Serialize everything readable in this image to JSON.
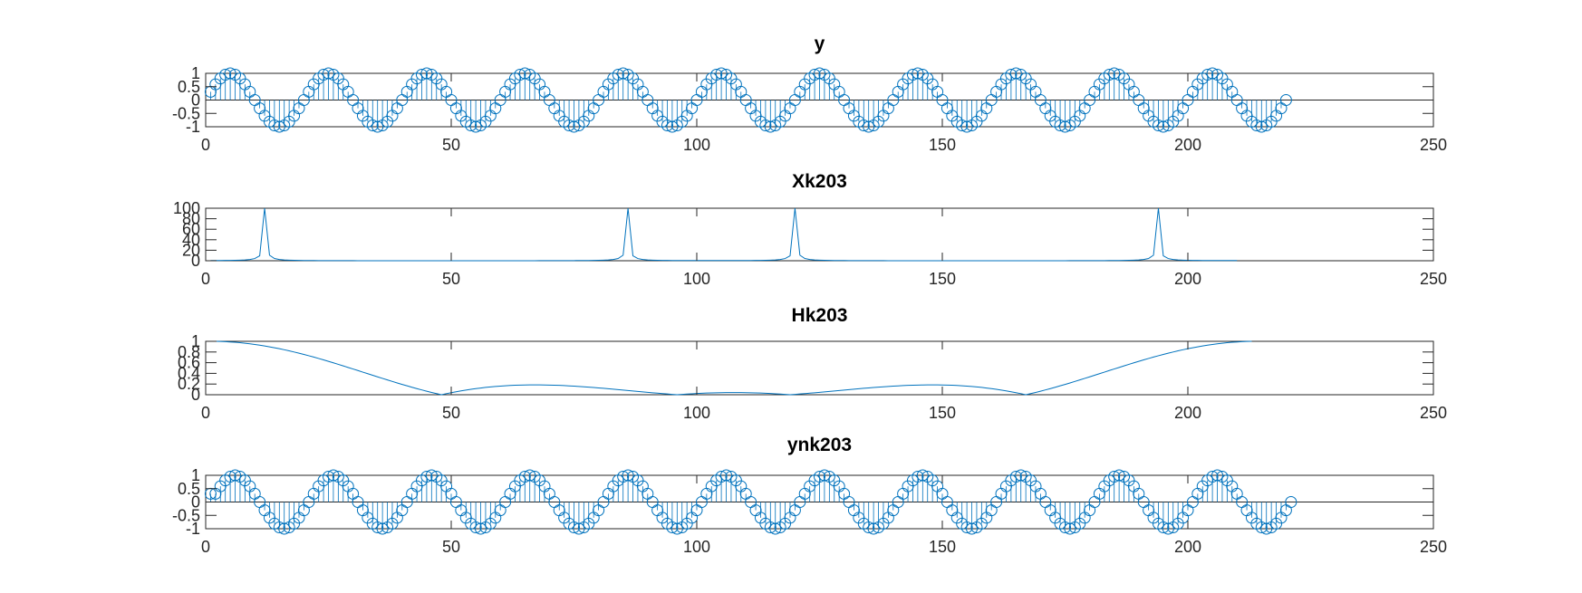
{
  "figure": {
    "background": "#ffffff"
  },
  "colors": {
    "series": "#0072BD",
    "axes": "#262626"
  },
  "chart_data": [
    {
      "type": "stem",
      "title": "y",
      "xlim": [
        0,
        250
      ],
      "ylim": [
        -1,
        1
      ],
      "xticks": [
        0,
        50,
        100,
        150,
        200,
        250
      ],
      "xtick_labels": [
        "0",
        "50",
        "100",
        "150",
        "200",
        "250"
      ],
      "yticks": [
        -1,
        -0.5,
        0,
        0.5,
        1
      ],
      "ytick_labels": [
        "-1",
        "-0.5",
        "0",
        "0.5",
        "1"
      ],
      "grid": false,
      "series": [
        {
          "values": [
            0.31,
            0.59,
            0.81,
            0.95,
            1,
            0.95,
            0.81,
            0.59,
            0.31,
            0,
            -0.31,
            -0.59,
            -0.81,
            -0.95,
            -1,
            -0.95,
            -0.81,
            -0.59,
            -0.31,
            0,
            0.31,
            0.59,
            0.81,
            0.95,
            1,
            0.95,
            0.81,
            0.59,
            0.31,
            0,
            -0.31,
            -0.59,
            -0.81,
            -0.95,
            -1,
            -0.95,
            -0.81,
            -0.59,
            -0.31,
            0,
            0.31,
            0.59,
            0.81,
            0.95,
            1,
            0.95,
            0.81,
            0.59,
            0.31,
            0,
            -0.31,
            -0.59,
            -0.81,
            -0.95,
            -1,
            -0.95,
            -0.81,
            -0.59,
            -0.31,
            0,
            0.31,
            0.59,
            0.81,
            0.95,
            1,
            0.95,
            0.81,
            0.59,
            0.31,
            0,
            -0.31,
            -0.59,
            -0.81,
            -0.95,
            -1,
            -0.95,
            -0.81,
            -0.59,
            -0.31,
            0,
            0.31,
            0.59,
            0.81,
            0.95,
            1,
            0.95,
            0.81,
            0.59,
            0.31,
            0,
            -0.31,
            -0.59,
            -0.81,
            -0.95,
            -1,
            -0.95,
            -0.81,
            -0.59,
            -0.31,
            0,
            0.31,
            0.59,
            0.81,
            0.95,
            1,
            0.95,
            0.81,
            0.59,
            0.31,
            0,
            -0.31,
            -0.59,
            -0.81,
            -0.95,
            -1,
            -0.95,
            -0.81,
            -0.59,
            -0.31,
            0,
            0.31,
            0.59,
            0.81,
            0.95,
            1,
            0.95,
            0.81,
            0.59,
            0.31,
            0,
            -0.31,
            -0.59,
            -0.81,
            -0.95,
            -1,
            -0.95,
            -0.81,
            -0.59,
            -0.31,
            0,
            0.31,
            0.59,
            0.81,
            0.95,
            1,
            0.95,
            0.81,
            0.59,
            0.31,
            0,
            -0.31,
            -0.59,
            -0.81,
            -0.95,
            -1,
            -0.95,
            -0.81,
            -0.59,
            -0.31,
            0,
            0.31,
            0.59,
            0.81,
            0.95,
            1,
            0.95,
            0.81,
            0.59,
            0.31,
            0,
            -0.31,
            -0.59,
            -0.81,
            -0.95,
            -1,
            -0.95,
            -0.81,
            -0.59,
            -0.31,
            0,
            0.31,
            0.59,
            0.81,
            0.95,
            1,
            0.95,
            0.81,
            0.59,
            0.31,
            0,
            -0.31,
            -0.59,
            -0.81,
            -0.95,
            -1,
            -0.95,
            -0.81,
            -0.59,
            -0.31,
            0,
            0.31,
            0.59,
            0.81,
            0.95,
            1,
            0.95,
            0.81,
            0.59,
            0.31,
            0,
            -0.31,
            -0.59,
            -0.81,
            -0.95,
            -1,
            -0.95,
            -0.81,
            -0.59,
            -0.31,
            0
          ]
        }
      ]
    },
    {
      "type": "line",
      "title": "Xk203",
      "xlim": [
        0,
        250
      ],
      "ylim": [
        0,
        100
      ],
      "xticks": [
        0,
        50,
        100,
        150,
        200,
        250
      ],
      "xtick_labels": [
        "0",
        "50",
        "100",
        "150",
        "200",
        "250"
      ],
      "yticks": [
        0,
        20,
        40,
        60,
        80,
        100
      ],
      "ytick_labels": [
        "0",
        "20",
        "40",
        "60",
        "80",
        "100"
      ],
      "grid": false,
      "series": [
        {
          "values": [
            0.42,
            0.46,
            0.52,
            0.6,
            0.72,
            0.89,
            1.16,
            1.6,
            2.42,
            4.2,
            9.47,
            100.01,
            10.53,
            4.3,
            2.45,
            1.6,
            1.13,
            0.85,
            0.66,
            0.53,
            0.44,
            0.37,
            0.31,
            0.27,
            0.23,
            0.2,
            0.18,
            0.16,
            0.14,
            0.12,
            0.11,
            0.1,
            0.09,
            0.08,
            0.07,
            0.06,
            0.05,
            0.05,
            0.04,
            0.03,
            0.03,
            0.02,
            0.02,
            0.01,
            0.01,
            0.01,
            0.01,
            0.01,
            0.01,
            0.01,
            0.01,
            0.01,
            0.01,
            0.01,
            0.02,
            0.02,
            0.03,
            0.03,
            0.04,
            0.05,
            0.05,
            0.06,
            0.07,
            0.08,
            0.09,
            0.1,
            0.11,
            0.12,
            0.14,
            0.16,
            0.18,
            0.2,
            0.23,
            0.27,
            0.31,
            0.37,
            0.44,
            0.53,
            0.66,
            0.85,
            1.13,
            1.6,
            2.45,
            4.3,
            10.53,
            100.01,
            9.47,
            4.2,
            2.42,
            1.6,
            1.16,
            0.89,
            0.72,
            0.6,
            0.52,
            0.46,
            0.42,
            0.38,
            0.36,
            0.34,
            0.33,
            0.32,
            0.32,
            0.32,
            0.33,
            0.34,
            0.36,
            0.38,
            0.42,
            0.46,
            0.52,
            0.6,
            0.72,
            0.89,
            1.16,
            1.6,
            2.42,
            4.2,
            9.47,
            100.01,
            10.53,
            4.3,
            2.45,
            1.6,
            1.13,
            0.85,
            0.66,
            0.53,
            0.44,
            0.37,
            0.31,
            0.27,
            0.23,
            0.2,
            0.18,
            0.16,
            0.14,
            0.12,
            0.11,
            0.1,
            0.09,
            0.08,
            0.07,
            0.06,
            0.05,
            0.05,
            0.04,
            0.03,
            0.03,
            0.02,
            0.02,
            0.01,
            0.01,
            0.01,
            0.01,
            0.01,
            0.01,
            0.01,
            0.01,
            0.01,
            0.01,
            0.01,
            0.02,
            0.02,
            0.03,
            0.03,
            0.04,
            0.05,
            0.05,
            0.06,
            0.07,
            0.08,
            0.09,
            0.1,
            0.11,
            0.12,
            0.14,
            0.16,
            0.18,
            0.2,
            0.23,
            0.27,
            0.31,
            0.37,
            0.44,
            0.53,
            0.66,
            0.85,
            1.13,
            1.6,
            2.45,
            4.3,
            10.53,
            100.01,
            9.47,
            4.2,
            2.42,
            1.6,
            1.16,
            0.89,
            0.72,
            0.6,
            0.52,
            0.46,
            0.42,
            0.38,
            0.36,
            0.34,
            0.33,
            0.32
          ]
        }
      ]
    },
    {
      "type": "line",
      "title": "Hk203",
      "xlim": [
        0,
        250
      ],
      "ylim": [
        0,
        1
      ],
      "xticks": [
        0,
        50,
        100,
        150,
        200,
        250
      ],
      "xtick_labels": [
        "0",
        "50",
        "100",
        "150",
        "200",
        "250"
      ],
      "yticks": [
        0,
        0.2,
        0.4,
        0.6,
        0.8,
        1
      ],
      "ytick_labels": [
        "0",
        "0.2",
        "0.4",
        "0.6",
        "0.8",
        "1"
      ],
      "grid": false,
      "series": [
        {
          "values": [
            1,
            0.999,
            0.997,
            0.993,
            0.988,
            0.982,
            0.974,
            0.964,
            0.953,
            0.941,
            0.928,
            0.913,
            0.897,
            0.88,
            0.862,
            0.842,
            0.822,
            0.8,
            0.778,
            0.754,
            0.73,
            0.705,
            0.679,
            0.652,
            0.625,
            0.597,
            0.569,
            0.54,
            0.511,
            0.482,
            0.453,
            0.423,
            0.394,
            0.364,
            0.335,
            0.306,
            0.277,
            0.249,
            0.221,
            0.193,
            0.167,
            0.14,
            0.115,
            0.09,
            0.066,
            0.043,
            0.021,
            0,
            0.02,
            0.039,
            0.056,
            0.072,
            0.087,
            0.101,
            0.114,
            0.126,
            0.137,
            0.146,
            0.155,
            0.162,
            0.168,
            0.173,
            0.177,
            0.181,
            0.183,
            0.184,
            0.184,
            0.184,
            0.183,
            0.181,
            0.178,
            0.175,
            0.171,
            0.166,
            0.161,
            0.155,
            0.149,
            0.142,
            0.135,
            0.128,
            0.12,
            0.112,
            0.104,
            0.096,
            0.087,
            0.079,
            0.07,
            0.062,
            0.053,
            0.045,
            0.037,
            0.029,
            0.021,
            0.014,
            0.007,
            0,
            0.007,
            0.013,
            0.018,
            0.023,
            0.027,
            0.031,
            0.034,
            0.037,
            0.039,
            0.04,
            0.041,
            0.041,
            0.04,
            0.039,
            0.037,
            0.034,
            0.031,
            0.027,
            0.023,
            0.018,
            0.013,
            0.007,
            0,
            0.007,
            0.014,
            0.021,
            0.029,
            0.037,
            0.045,
            0.053,
            0.062,
            0.07,
            0.079,
            0.087,
            0.096,
            0.104,
            0.112,
            0.12,
            0.128,
            0.135,
            0.142,
            0.149,
            0.155,
            0.161,
            0.166,
            0.171,
            0.175,
            0.178,
            0.181,
            0.183,
            0.184,
            0.184,
            0.184,
            0.183,
            0.181,
            0.177,
            0.173,
            0.168,
            0.162,
            0.155,
            0.146,
            0.137,
            0.126,
            0.114,
            0.101,
            0.087,
            0.072,
            0.056,
            0.039,
            0.02,
            0,
            0.021,
            0.043,
            0.066,
            0.09,
            0.115,
            0.14,
            0.167,
            0.193,
            0.221,
            0.249,
            0.277,
            0.306,
            0.335,
            0.364,
            0.394,
            0.423,
            0.453,
            0.482,
            0.511,
            0.54,
            0.569,
            0.597,
            0.625,
            0.652,
            0.679,
            0.705,
            0.73,
            0.754,
            0.778,
            0.8,
            0.822,
            0.842,
            0.862,
            0.88,
            0.897,
            0.913,
            0.928,
            0.941,
            0.953,
            0.964,
            0.974,
            0.982,
            0.988,
            0.993,
            0.997,
            0.999
          ]
        }
      ]
    },
    {
      "type": "stem",
      "title": "ynk203",
      "xlim": [
        0,
        250
      ],
      "ylim": [
        -1,
        1
      ],
      "xticks": [
        0,
        50,
        100,
        150,
        200,
        250
      ],
      "xtick_labels": [
        "0",
        "50",
        "100",
        "150",
        "200",
        "250"
      ],
      "yticks": [
        -1,
        -0.5,
        0,
        0.5,
        1
      ],
      "ytick_labels": [
        "-1",
        "-0.5",
        "0",
        "0.5",
        "1"
      ],
      "grid": false,
      "series": [
        {
          "values": [
            0.31,
            0.31,
            0.59,
            0.81,
            0.95,
            1,
            0.95,
            0.81,
            0.59,
            0.31,
            0,
            -0.31,
            -0.59,
            -0.81,
            -0.95,
            -1,
            -0.95,
            -0.81,
            -0.59,
            -0.31,
            0,
            0.31,
            0.59,
            0.81,
            0.95,
            1,
            0.95,
            0.81,
            0.59,
            0.31,
            0,
            -0.31,
            -0.59,
            -0.81,
            -0.95,
            -1,
            -0.95,
            -0.81,
            -0.59,
            -0.31,
            0,
            0.31,
            0.59,
            0.81,
            0.95,
            1,
            0.95,
            0.81,
            0.59,
            0.31,
            0,
            -0.31,
            -0.59,
            -0.81,
            -0.95,
            -1,
            -0.95,
            -0.81,
            -0.59,
            -0.31,
            0,
            0.31,
            0.59,
            0.81,
            0.95,
            1,
            0.95,
            0.81,
            0.59,
            0.31,
            0,
            -0.31,
            -0.59,
            -0.81,
            -0.95,
            -1,
            -0.95,
            -0.81,
            -0.59,
            -0.31,
            0,
            0.31,
            0.59,
            0.81,
            0.95,
            1,
            0.95,
            0.81,
            0.59,
            0.31,
            0,
            -0.31,
            -0.59,
            -0.81,
            -0.95,
            -1,
            -0.95,
            -0.81,
            -0.59,
            -0.31,
            0,
            0.31,
            0.59,
            0.81,
            0.95,
            1,
            0.95,
            0.81,
            0.59,
            0.31,
            0,
            -0.31,
            -0.59,
            -0.81,
            -0.95,
            -1,
            -0.95,
            -0.81,
            -0.59,
            -0.31,
            0,
            0.31,
            0.59,
            0.81,
            0.95,
            1,
            0.95,
            0.81,
            0.59,
            0.31,
            0,
            -0.31,
            -0.59,
            -0.81,
            -0.95,
            -1,
            -0.95,
            -0.81,
            -0.59,
            -0.31,
            0,
            0.31,
            0.59,
            0.81,
            0.95,
            1,
            0.95,
            0.81,
            0.59,
            0.31,
            0,
            -0.31,
            -0.59,
            -0.81,
            -0.95,
            -1,
            -0.95,
            -0.81,
            -0.59,
            -0.31,
            0,
            0.31,
            0.59,
            0.81,
            0.95,
            1,
            0.95,
            0.81,
            0.59,
            0.31,
            0,
            -0.31,
            -0.59,
            -0.81,
            -0.95,
            -1,
            -0.95,
            -0.81,
            -0.59,
            -0.31,
            0,
            0.31,
            0.59,
            0.81,
            0.95,
            1,
            0.95,
            0.81,
            0.59,
            0.31,
            0,
            -0.31,
            -0.59,
            -0.81,
            -0.95,
            -1,
            -0.95,
            -0.81,
            -0.59,
            -0.31,
            0,
            0.31,
            0.59,
            0.81,
            0.95,
            1,
            0.95,
            0.81,
            0.59,
            0.31,
            0,
            -0.31,
            -0.59,
            -0.81,
            -0.95,
            -1,
            -0.95,
            -0.81,
            -0.59,
            -0.31,
            0
          ]
        }
      ]
    }
  ]
}
